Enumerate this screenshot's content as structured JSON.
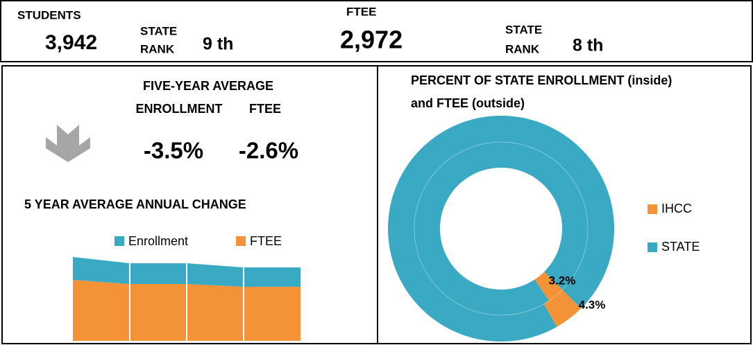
{
  "header": {
    "students_label": "STUDENTS",
    "students_value": "3,942",
    "students_rank_label_1": "STATE",
    "students_rank_label_2": "RANK",
    "students_rank": "9 th",
    "ftee_label": "FTEE",
    "ftee_value": "2,972",
    "ftee_rank_label_1": "STATE",
    "ftee_rank_label_2": "RANK",
    "ftee_rank": "8 th"
  },
  "five_year": {
    "title": "FIVE-YEAR AVERAGE",
    "enrollment_label": "ENROLLMENT",
    "ftee_label": "FTEE",
    "enrollment_value": "-3.5%",
    "ftee_value": "-2.6%"
  },
  "chart_data": [
    {
      "type": "area",
      "title": "5 YEAR AVERAGE ANNUAL CHANGE",
      "stacked": true,
      "categories": [
        null,
        null,
        null,
        null,
        null
      ],
      "series": [
        {
          "name": "Enrollment",
          "color": "#3aa9c4",
          "values": [
            33,
            30,
            30,
            28,
            28
          ]
        },
        {
          "name": "FTEE",
          "color": "#f39237",
          "values": [
            88,
            82,
            82,
            78,
            78
          ]
        }
      ],
      "ylim": [
        0,
        130
      ]
    },
    {
      "type": "donut",
      "title": "PERCENT OF STATE ENROLLMENT (inside)",
      "subtitle": "and FTEE (outside)",
      "categories": [
        "IHCC",
        "STATE"
      ],
      "colors": [
        "#f39237",
        "#3aa9c4"
      ],
      "series": [
        {
          "values": [
            3.2,
            96.8
          ],
          "value_labels": [
            "3.2%",
            null
          ]
        },
        {
          "values": [
            4.3,
            95.7
          ],
          "value_labels": [
            "4.3%",
            null
          ]
        }
      ]
    }
  ]
}
